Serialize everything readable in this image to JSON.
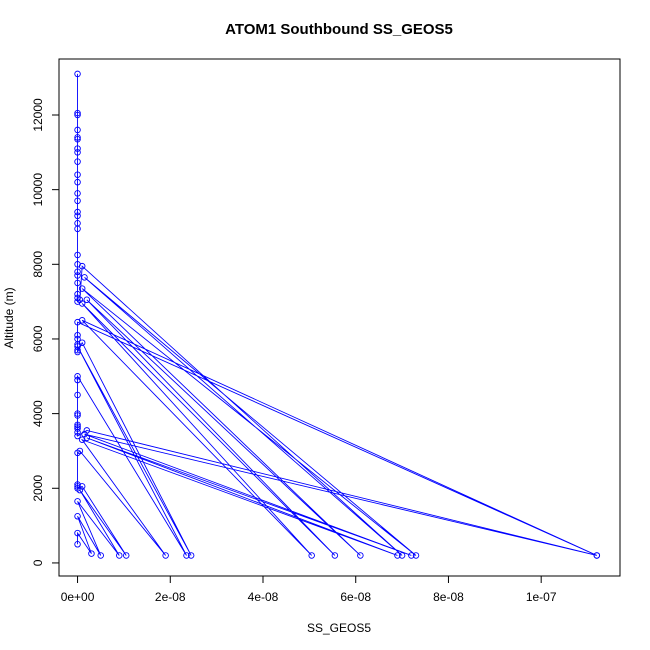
{
  "chart_data": {
    "type": "line",
    "title": "ATOM1 Southbound SS_GEOS5",
    "xlabel": "SS_GEOS5",
    "ylabel": "Altitude (m)",
    "xlim": [
      -4e-09,
      1.17e-07
    ],
    "ylim": [
      -350,
      13500
    ],
    "x_ticks": [
      0,
      2e-08,
      4e-08,
      6e-08,
      8e-08,
      1e-07
    ],
    "x_tick_labels": [
      "0e+00",
      "2e-08",
      "4e-08",
      "6e-08",
      "8e-08",
      "1e-07"
    ],
    "y_ticks": [
      0,
      2000,
      4000,
      6000,
      8000,
      10000,
      12000
    ],
    "y_tick_labels": [
      "0",
      "2000",
      "4000",
      "6000",
      "8000",
      "10000",
      "12000"
    ],
    "marker": "open-circle",
    "series": [
      {
        "color": "#0000ff",
        "points": [
          [
            0,
            13100
          ],
          [
            0,
            12050
          ],
          [
            0,
            12000
          ],
          [
            0,
            11600
          ],
          [
            0,
            11400
          ],
          [
            0,
            11350
          ],
          [
            0,
            11100
          ],
          [
            0,
            11000
          ],
          [
            0,
            10750
          ],
          [
            0,
            10400
          ],
          [
            0,
            10200
          ],
          [
            0,
            9900
          ],
          [
            0,
            9700
          ],
          [
            0,
            9400
          ],
          [
            0,
            9300
          ],
          [
            0,
            9100
          ],
          [
            0,
            8950
          ],
          [
            0,
            8250
          ],
          [
            0,
            8000
          ],
          [
            0,
            7800
          ],
          [
            0,
            7700
          ],
          [
            0,
            7500
          ],
          [
            0,
            7200
          ],
          [
            0,
            7100
          ],
          [
            0,
            7000
          ],
          [
            5e-10,
            7050
          ],
          [
            1e-09,
            7950
          ],
          [
            7e-08,
            200
          ],
          [
            1.5e-09,
            7650
          ],
          [
            7.3e-08,
            200
          ],
          [
            1e-09,
            7350
          ],
          [
            6.1e-08,
            200
          ],
          [
            2e-09,
            7050
          ],
          [
            5.55e-08,
            200
          ],
          [
            1e-09,
            6950
          ],
          [
            5.05e-08,
            200
          ],
          [
            1e-09,
            6500
          ],
          [
            1.12e-07,
            200
          ],
          [
            0,
            6450
          ],
          [
            0,
            6100
          ],
          [
            0,
            6000
          ],
          [
            0,
            5850
          ],
          [
            0,
            5700
          ],
          [
            0,
            5650
          ],
          [
            1e-09,
            5900
          ],
          [
            2.45e-08,
            200
          ],
          [
            0,
            5800
          ],
          [
            2.35e-08,
            200
          ],
          [
            0,
            5000
          ],
          [
            0,
            4900
          ],
          [
            0,
            4500
          ],
          [
            0,
            4000
          ],
          [
            0,
            3950
          ],
          [
            0,
            3700
          ],
          [
            0,
            3650
          ],
          [
            0,
            3600
          ],
          [
            0,
            3500
          ],
          [
            0,
            3400
          ],
          [
            2e-09,
            3550
          ],
          [
            1.12e-07,
            200
          ],
          [
            1.5e-09,
            3450
          ],
          [
            7.2e-08,
            200
          ],
          [
            2e-09,
            3350
          ],
          [
            6.9e-08,
            200
          ],
          [
            1e-09,
            3300
          ],
          [
            1.9e-08,
            200
          ],
          [
            5e-10,
            3000
          ],
          [
            0,
            2950
          ],
          [
            0,
            2100
          ],
          [
            0,
            2050
          ],
          [
            0,
            2000
          ],
          [
            1e-09,
            2050
          ],
          [
            1.05e-08,
            200
          ],
          [
            5e-10,
            1950
          ],
          [
            9e-09,
            200
          ],
          [
            0,
            1650
          ],
          [
            5e-09,
            200
          ],
          [
            0,
            1250
          ],
          [
            3e-09,
            250
          ],
          [
            0,
            800
          ],
          [
            0,
            500
          ]
        ]
      }
    ]
  }
}
